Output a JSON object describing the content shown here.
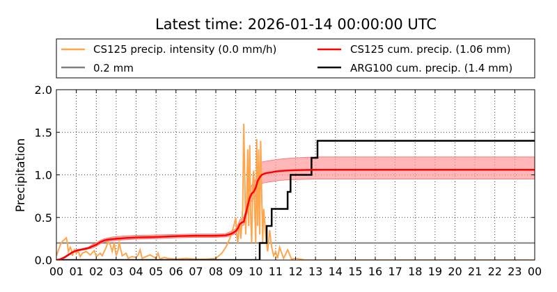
{
  "chart_data": {
    "type": "line",
    "title": "Latest time: 2026-01-14 00:00:00 UTC",
    "xlabel": "",
    "ylabel": "Precipitation",
    "xlim": [
      0,
      24
    ],
    "ylim": [
      0,
      2.0
    ],
    "grid": true,
    "legend_position": "top",
    "x_tick_labels": [
      "00",
      "01",
      "02",
      "03",
      "04",
      "05",
      "06",
      "07",
      "08",
      "09",
      "10",
      "11",
      "12",
      "13",
      "14",
      "15",
      "16",
      "17",
      "18",
      "19",
      "20",
      "21",
      "22",
      "23",
      "00"
    ],
    "y_tick_labels": [
      "0.0",
      "0.5",
      "1.0",
      "1.5",
      "2.0"
    ],
    "y_ticks": [
      0,
      0.5,
      1.0,
      1.5,
      2.0
    ],
    "threshold": {
      "name": "0.2 mm",
      "value": 0.2,
      "color": "#808080"
    },
    "series": [
      {
        "name": "CS125 precip. intensity (0.0 mm/h)",
        "color": "#ffa64d",
        "x": [
          0,
          0.2,
          0.3,
          0.4,
          0.5,
          0.55,
          0.6,
          0.7,
          0.75,
          0.8,
          0.9,
          1.0,
          1.1,
          1.2,
          1.3,
          1.5,
          1.7,
          1.9,
          2.0,
          2.2,
          2.3,
          2.5,
          2.6,
          2.7,
          2.8,
          2.9,
          3.0,
          3.1,
          3.15,
          3.2,
          3.3,
          3.5,
          3.6,
          3.8,
          4.0,
          4.1,
          4.2,
          4.3,
          4.5,
          4.7,
          5.0,
          5.1,
          5.2,
          5.4,
          5.6,
          6.0,
          6.5,
          7.0,
          7.5,
          8.0,
          8.3,
          8.5,
          8.7,
          8.9,
          9.0,
          9.05,
          9.1,
          9.15,
          9.2,
          9.25,
          9.3,
          9.35,
          9.4,
          9.45,
          9.5,
          9.55,
          9.6,
          9.65,
          9.7,
          9.75,
          9.8,
          9.85,
          9.9,
          9.95,
          10.0,
          10.05,
          10.1,
          10.15,
          10.2,
          10.25,
          10.3,
          10.35,
          10.4,
          10.5,
          10.6,
          10.7,
          10.8,
          10.9,
          11.0,
          11.1,
          11.2,
          11.4,
          11.6,
          11.8,
          12.0,
          12.5,
          13,
          14,
          15,
          16,
          17,
          18,
          19,
          20,
          21,
          22,
          23,
          24
        ],
        "y": [
          0.05,
          0.18,
          0.22,
          0.24,
          0.26,
          0.2,
          0.1,
          0.15,
          0.12,
          0.05,
          0.12,
          0.08,
          0.1,
          0.04,
          0.08,
          0.1,
          0.06,
          0.11,
          0.04,
          0.08,
          0.05,
          0.15,
          0.22,
          0.18,
          0.1,
          0.2,
          0.05,
          0.12,
          0.22,
          0.15,
          0.05,
          0.08,
          0.02,
          0.04,
          0.03,
          0.06,
          0.12,
          0.02,
          0.04,
          0.06,
          0.02,
          0.08,
          0.01,
          0.03,
          0.02,
          0.01,
          0.02,
          0.01,
          0.01,
          0.02,
          0.08,
          0.15,
          0.25,
          0.4,
          0.5,
          0.3,
          0.2,
          0.35,
          0.45,
          0.25,
          0.42,
          0.6,
          1.6,
          1.0,
          0.3,
          0.7,
          1.3,
          0.4,
          1.35,
          0.5,
          0.2,
          0.9,
          1.05,
          0.6,
          0.2,
          1.42,
          0.4,
          1.3,
          0.3,
          1.4,
          0.8,
          0.2,
          0.6,
          0.3,
          0.1,
          0.35,
          0.15,
          0.05,
          0.1,
          0.02,
          0.15,
          0.02,
          0.12,
          0.01,
          0.02,
          0,
          0,
          0,
          0,
          0,
          0,
          0,
          0,
          0,
          0,
          0,
          0,
          0
        ]
      },
      {
        "name": "CS125 cum. precip. (1.06 mm)",
        "color": "#ff0000",
        "band_color": "#ff9999",
        "x": [
          0,
          0.2,
          0.4,
          0.6,
          0.8,
          1.0,
          1.2,
          1.4,
          1.6,
          1.8,
          2.0,
          2.2,
          2.4,
          2.6,
          2.8,
          3.0,
          3.3,
          3.6,
          4.0,
          5.0,
          6.0,
          7.0,
          8.0,
          8.5,
          8.8,
          9.0,
          9.1,
          9.2,
          9.3,
          9.4,
          9.5,
          9.6,
          9.7,
          9.8,
          9.9,
          10.0,
          10.1,
          10.2,
          10.3,
          10.5,
          10.8,
          11.0,
          11.5,
          12.0,
          13.0,
          14.0,
          24.0
        ],
        "y": [
          0.0,
          0.01,
          0.03,
          0.06,
          0.09,
          0.11,
          0.12,
          0.13,
          0.14,
          0.16,
          0.18,
          0.21,
          0.23,
          0.24,
          0.245,
          0.25,
          0.255,
          0.26,
          0.265,
          0.27,
          0.28,
          0.285,
          0.285,
          0.29,
          0.31,
          0.34,
          0.37,
          0.42,
          0.44,
          0.45,
          0.54,
          0.64,
          0.73,
          0.78,
          0.8,
          0.85,
          0.93,
          0.97,
          1.0,
          1.02,
          1.03,
          1.04,
          1.05,
          1.055,
          1.06,
          1.06,
          1.06
        ],
        "band_lower": [
          0.0,
          0.01,
          0.02,
          0.05,
          0.08,
          0.1,
          0.11,
          0.12,
          0.13,
          0.14,
          0.16,
          0.19,
          0.21,
          0.22,
          0.225,
          0.23,
          0.235,
          0.24,
          0.245,
          0.25,
          0.26,
          0.265,
          0.265,
          0.27,
          0.29,
          0.31,
          0.34,
          0.38,
          0.4,
          0.41,
          0.49,
          0.57,
          0.65,
          0.7,
          0.72,
          0.76,
          0.83,
          0.87,
          0.9,
          0.91,
          0.92,
          0.93,
          0.94,
          0.945,
          0.95,
          0.95,
          0.95
        ],
        "band_upper": [
          0.0,
          0.01,
          0.04,
          0.07,
          0.1,
          0.12,
          0.13,
          0.14,
          0.15,
          0.18,
          0.2,
          0.23,
          0.25,
          0.26,
          0.27,
          0.275,
          0.28,
          0.285,
          0.29,
          0.295,
          0.3,
          0.305,
          0.305,
          0.31,
          0.34,
          0.37,
          0.41,
          0.47,
          0.49,
          0.5,
          0.6,
          0.72,
          0.83,
          0.88,
          0.9,
          0.95,
          1.05,
          1.1,
          1.15,
          1.16,
          1.17,
          1.18,
          1.19,
          1.2,
          1.21,
          1.21,
          1.21
        ]
      },
      {
        "name": "ARG100 cum. precip. (1.4 mm)",
        "color": "#000000",
        "x": [
          0,
          10.2,
          10.2,
          10.55,
          10.55,
          10.8,
          10.8,
          11.6,
          11.6,
          11.75,
          11.75,
          12.8,
          12.8,
          13.1,
          13.1,
          24
        ],
        "y": [
          0,
          0,
          0.2,
          0.2,
          0.4,
          0.4,
          0.6,
          0.6,
          0.8,
          0.8,
          1.0,
          1.0,
          1.2,
          1.2,
          1.4,
          1.4
        ]
      }
    ]
  }
}
